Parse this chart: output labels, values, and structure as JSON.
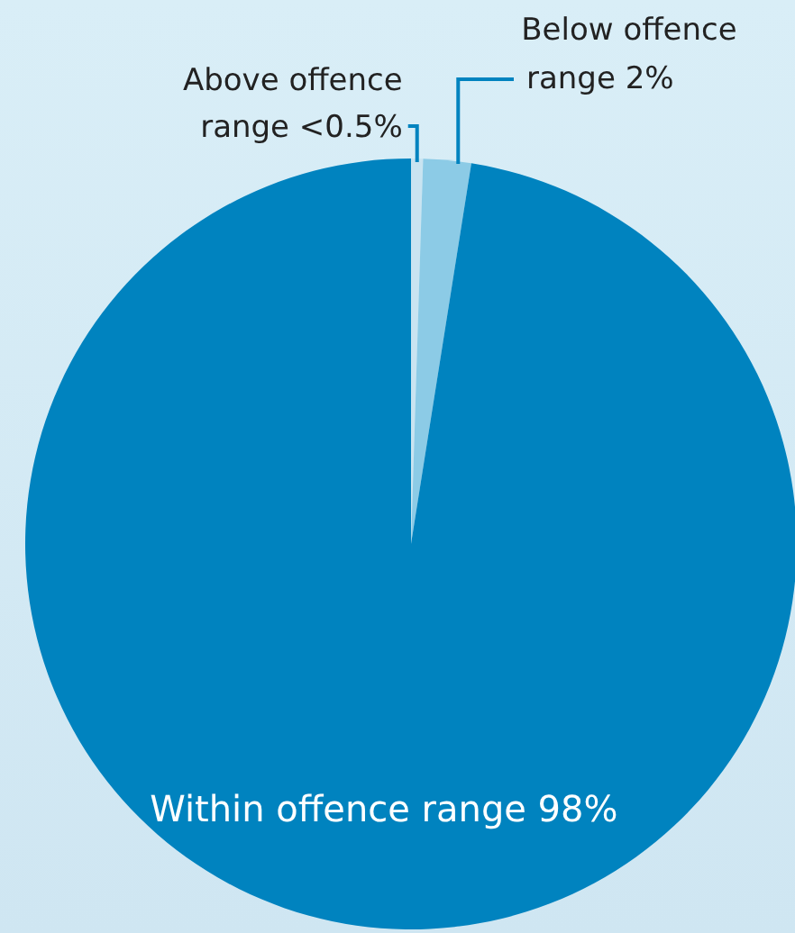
{
  "chart_data": {
    "type": "pie",
    "categories": [
      "Above offence range",
      "Below offence range",
      "Within offence range"
    ],
    "values": [
      0.5,
      2,
      97.5
    ],
    "colors": [
      "#c9e4f1",
      "#8ccbe6",
      "#0083bf"
    ],
    "value_labels": [
      "<0.5%",
      "2%",
      "98%"
    ]
  }
}
